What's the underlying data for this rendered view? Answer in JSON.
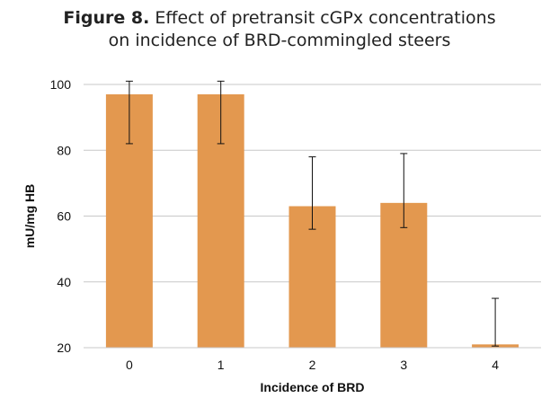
{
  "title": {
    "lead": "Figure 8.",
    "line1": "Effect of pretransit cGPx concentrations",
    "line2": "on incidence of BRD-commingled steers"
  },
  "chart_data": {
    "type": "bar",
    "title": "Figure 8. Effect of pretransit cGPx concentrations on incidence of BRD-commingled steers",
    "xlabel": "Incidence of BRD",
    "ylabel": "mU/mg HB",
    "categories": [
      "0",
      "1",
      "2",
      "3",
      "4"
    ],
    "values": [
      97,
      97,
      63,
      64,
      21
    ],
    "error_low": [
      82,
      82,
      56,
      56.5,
      20.5
    ],
    "error_high": [
      101,
      101,
      78,
      79,
      35
    ],
    "ylim": [
      20,
      100
    ],
    "yticks": [
      "20",
      "40",
      "60",
      "80",
      "100"
    ],
    "grid": true,
    "bar_color": "#e3984f",
    "grid_color": "#c8c8c8"
  }
}
